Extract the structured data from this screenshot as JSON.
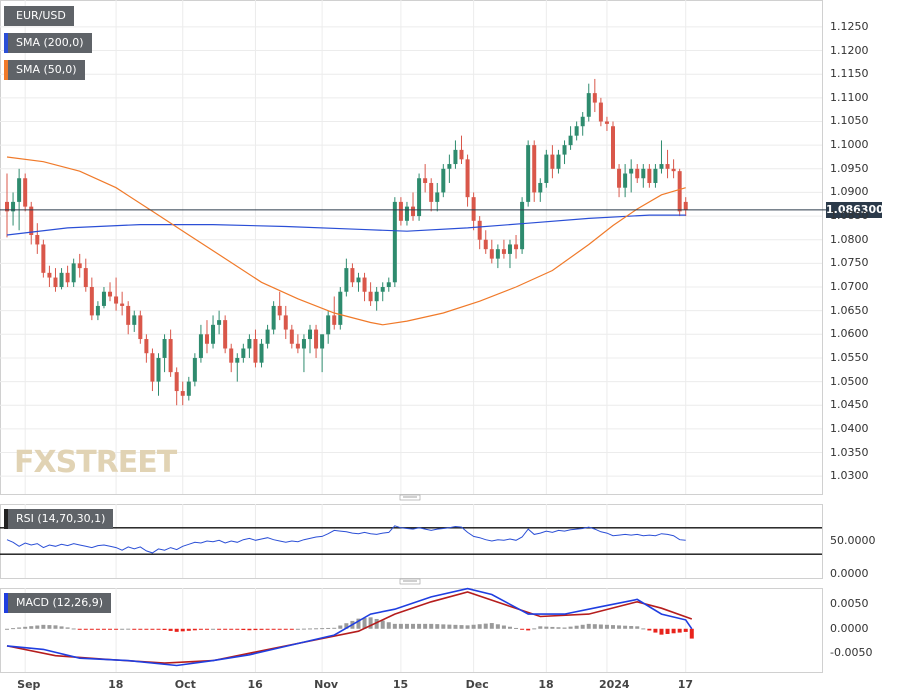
{
  "symbol": "EUR/USD",
  "indicators": {
    "sma200_label": "SMA (200,0)",
    "sma50_label": "SMA (50,0)",
    "rsi_label": "RSI (14,70,30,1)",
    "macd_label": "MACD (12,26,9)"
  },
  "watermark": "FXSTREET",
  "current_price": "1.086300",
  "colors": {
    "up": "#2e8b6e",
    "down": "#d9574a",
    "sma200": "#2b4fd6",
    "sma50": "#f07a2a",
    "rsi": "#2b4fd6",
    "macd_line": "#1f3ee0",
    "signal_line": "#b51d1d",
    "hist_pos": "#9a9a9a",
    "hist_neg": "#e8231c"
  },
  "chart_data": [
    {
      "type": "candlestick",
      "title": "EUR/USD",
      "y_ticks": [
        "1.1250",
        "1.1200",
        "1.1150",
        "1.1100",
        "1.1050",
        "1.1000",
        "1.0950",
        "1.0900",
        "1.0850",
        "1.0800",
        "1.0750",
        "1.0700",
        "1.0650",
        "1.0600",
        "1.0550",
        "1.0500",
        "1.0450",
        "1.0400",
        "1.0350",
        "1.0300"
      ],
      "ylim": [
        1.0275,
        1.129
      ],
      "x_ticks": [
        "Sep",
        "18",
        "Oct",
        "16",
        "Nov",
        "15",
        "Dec",
        "18",
        "2024",
        "17"
      ],
      "current_price": 1.0863,
      "ohlc": [
        [
          1.088,
          1.094,
          1.0805,
          1.086
        ],
        [
          1.086,
          1.09,
          1.083,
          1.088
        ],
        [
          1.088,
          1.095,
          1.082,
          1.093
        ],
        [
          1.093,
          1.094,
          1.086,
          1.087
        ],
        [
          1.087,
          1.088,
          1.079,
          1.081
        ],
        [
          1.081,
          1.0835,
          1.077,
          1.079
        ],
        [
          1.079,
          1.08,
          1.072,
          1.073
        ],
        [
          1.073,
          1.0745,
          1.07,
          1.072
        ],
        [
          1.072,
          1.074,
          1.069,
          1.07
        ],
        [
          1.07,
          1.074,
          1.0695,
          1.073
        ],
        [
          1.073,
          1.0745,
          1.07,
          1.071
        ],
        [
          1.071,
          1.076,
          1.07,
          1.075
        ],
        [
          1.075,
          1.077,
          1.072,
          1.074
        ],
        [
          1.074,
          1.076,
          1.069,
          1.07
        ],
        [
          1.07,
          1.072,
          1.063,
          1.064
        ],
        [
          1.064,
          1.067,
          1.063,
          1.066
        ],
        [
          1.066,
          1.07,
          1.0655,
          1.069
        ],
        [
          1.069,
          1.071,
          1.067,
          1.068
        ],
        [
          1.068,
          1.072,
          1.065,
          1.0665
        ],
        [
          1.0665,
          1.069,
          1.064,
          1.066
        ],
        [
          1.066,
          1.067,
          1.06,
          1.062
        ],
        [
          1.062,
          1.065,
          1.0605,
          1.064
        ],
        [
          1.064,
          1.065,
          1.058,
          1.059
        ],
        [
          1.059,
          1.06,
          1.054,
          1.056
        ],
        [
          1.056,
          1.057,
          1.048,
          1.05
        ],
        [
          1.05,
          1.056,
          1.047,
          1.055
        ],
        [
          1.055,
          1.06,
          1.052,
          1.059
        ],
        [
          1.059,
          1.061,
          1.051,
          1.052
        ],
        [
          1.052,
          1.053,
          1.045,
          1.048
        ],
        [
          1.048,
          1.05,
          1.045,
          1.047
        ],
        [
          1.047,
          1.051,
          1.046,
          1.05
        ],
        [
          1.05,
          1.056,
          1.049,
          1.055
        ],
        [
          1.055,
          1.062,
          1.054,
          1.06
        ],
        [
          1.06,
          1.063,
          1.056,
          1.058
        ],
        [
          1.058,
          1.064,
          1.057,
          1.062
        ],
        [
          1.062,
          1.065,
          1.06,
          1.063
        ],
        [
          1.063,
          1.064,
          1.056,
          1.057
        ],
        [
          1.057,
          1.058,
          1.052,
          1.054
        ],
        [
          1.054,
          1.056,
          1.05,
          1.055
        ],
        [
          1.055,
          1.058,
          1.054,
          1.057
        ],
        [
          1.057,
          1.06,
          1.055,
          1.059
        ],
        [
          1.059,
          1.061,
          1.053,
          1.054
        ],
        [
          1.054,
          1.059,
          1.053,
          1.058
        ],
        [
          1.058,
          1.062,
          1.057,
          1.061
        ],
        [
          1.061,
          1.067,
          1.06,
          1.066
        ],
        [
          1.066,
          1.069,
          1.063,
          1.064
        ],
        [
          1.064,
          1.066,
          1.059,
          1.061
        ],
        [
          1.061,
          1.062,
          1.057,
          1.058
        ],
        [
          1.058,
          1.06,
          1.056,
          1.057
        ],
        [
          1.057,
          1.06,
          1.052,
          1.059
        ],
        [
          1.059,
          1.062,
          1.056,
          1.061
        ],
        [
          1.061,
          1.062,
          1.055,
          1.057
        ],
        [
          1.057,
          1.06,
          1.052,
          1.06
        ],
        [
          1.06,
          1.065,
          1.058,
          1.064
        ],
        [
          1.064,
          1.068,
          1.061,
          1.062
        ],
        [
          1.062,
          1.07,
          1.061,
          1.069
        ],
        [
          1.069,
          1.076,
          1.068,
          1.074
        ],
        [
          1.074,
          1.075,
          1.07,
          1.071
        ],
        [
          1.071,
          1.073,
          1.069,
          1.072
        ],
        [
          1.072,
          1.073,
          1.067,
          1.069
        ],
        [
          1.069,
          1.071,
          1.066,
          1.067
        ],
        [
          1.067,
          1.07,
          1.065,
          1.069
        ],
        [
          1.069,
          1.071,
          1.067,
          1.07
        ],
        [
          1.07,
          1.072,
          1.069,
          1.071
        ],
        [
          1.071,
          1.089,
          1.07,
          1.088
        ],
        [
          1.088,
          1.089,
          1.083,
          1.084
        ],
        [
          1.084,
          1.088,
          1.083,
          1.087
        ],
        [
          1.087,
          1.09,
          1.084,
          1.085
        ],
        [
          1.085,
          1.094,
          1.084,
          1.093
        ],
        [
          1.093,
          1.096,
          1.09,
          1.092
        ],
        [
          1.092,
          1.093,
          1.086,
          1.088
        ],
        [
          1.088,
          1.092,
          1.086,
          1.09
        ],
        [
          1.09,
          1.096,
          1.089,
          1.095
        ],
        [
          1.095,
          1.098,
          1.092,
          1.096
        ],
        [
          1.096,
          1.101,
          1.095,
          1.099
        ],
        [
          1.099,
          1.102,
          1.096,
          1.097
        ],
        [
          1.097,
          1.098,
          1.087,
          1.089
        ],
        [
          1.089,
          1.09,
          1.082,
          1.084
        ],
        [
          1.084,
          1.085,
          1.078,
          1.08
        ],
        [
          1.08,
          1.082,
          1.077,
          1.078
        ],
        [
          1.078,
          1.08,
          1.075,
          1.076
        ],
        [
          1.076,
          1.079,
          1.074,
          1.078
        ],
        [
          1.078,
          1.08,
          1.076,
          1.077
        ],
        [
          1.077,
          1.08,
          1.074,
          1.079
        ],
        [
          1.079,
          1.081,
          1.076,
          1.078
        ],
        [
          1.078,
          1.089,
          1.077,
          1.088
        ],
        [
          1.088,
          1.101,
          1.087,
          1.1
        ],
        [
          1.1,
          1.101,
          1.088,
          1.09
        ],
        [
          1.09,
          1.093,
          1.088,
          1.092
        ],
        [
          1.092,
          1.099,
          1.091,
          1.098
        ],
        [
          1.098,
          1.1,
          1.093,
          1.095
        ],
        [
          1.095,
          1.099,
          1.094,
          1.098
        ],
        [
          1.098,
          1.101,
          1.096,
          1.1
        ],
        [
          1.1,
          1.104,
          1.099,
          1.102
        ],
        [
          1.102,
          1.105,
          1.101,
          1.104
        ],
        [
          1.104,
          1.107,
          1.102,
          1.106
        ],
        [
          1.106,
          1.113,
          1.105,
          1.111
        ],
        [
          1.111,
          1.114,
          1.107,
          1.109
        ],
        [
          1.109,
          1.11,
          1.104,
          1.105
        ],
        [
          1.105,
          1.106,
          1.103,
          1.1045
        ],
        [
          1.104,
          1.105,
          1.095,
          1.095
        ],
        [
          1.095,
          1.096,
          1.089,
          1.091
        ],
        [
          1.091,
          1.096,
          1.089,
          1.094
        ],
        [
          1.094,
          1.097,
          1.09,
          1.095
        ],
        [
          1.095,
          1.096,
          1.092,
          1.093
        ],
        [
          1.093,
          1.096,
          1.091,
          1.095
        ],
        [
          1.095,
          1.096,
          1.091,
          1.092
        ],
        [
          1.092,
          1.096,
          1.091,
          1.095
        ],
        [
          1.095,
          1.101,
          1.094,
          1.096
        ],
        [
          1.096,
          1.099,
          1.093,
          1.095
        ],
        [
          1.095,
          1.097,
          1.093,
          1.0945
        ],
        [
          1.0945,
          1.095,
          1.085,
          1.086
        ],
        [
          1.088,
          1.089,
          1.085,
          1.0863
        ]
      ],
      "sma200": [
        [
          0,
          1.081
        ],
        [
          10,
          1.0825
        ],
        [
          22,
          1.0832
        ],
        [
          34,
          1.0832
        ],
        [
          46,
          1.0828
        ],
        [
          58,
          1.0822
        ],
        [
          66,
          1.0818
        ],
        [
          76,
          1.0825
        ],
        [
          86,
          1.0835
        ],
        [
          96,
          1.0845
        ],
        [
          106,
          1.0852
        ],
        [
          112,
          1.0852
        ]
      ],
      "sma50": [
        [
          0,
          1.0975
        ],
        [
          6,
          1.0965
        ],
        [
          12,
          1.0945
        ],
        [
          18,
          1.091
        ],
        [
          24,
          1.086
        ],
        [
          30,
          1.081
        ],
        [
          36,
          1.076
        ],
        [
          42,
          1.071
        ],
        [
          48,
          1.0675
        ],
        [
          54,
          1.0645
        ],
        [
          60,
          1.0625
        ],
        [
          62,
          1.062
        ],
        [
          66,
          1.0628
        ],
        [
          72,
          1.0645
        ],
        [
          78,
          1.067
        ],
        [
          84,
          1.07
        ],
        [
          90,
          1.0735
        ],
        [
          96,
          1.079
        ],
        [
          100,
          1.083
        ],
        [
          104,
          1.0865
        ],
        [
          108,
          1.0895
        ],
        [
          112,
          1.091
        ]
      ]
    },
    {
      "type": "line",
      "title": "RSI (14,70,30,1)",
      "y_ticks": [
        "50.0000",
        "0.0000"
      ],
      "ylim": [
        0,
        100
      ],
      "levels": [
        70,
        30
      ],
      "values": [
        52,
        48,
        42,
        47,
        44,
        46,
        40,
        44,
        42,
        45,
        43,
        46,
        44,
        42,
        40,
        43,
        44,
        42,
        40,
        36,
        41,
        38,
        41,
        35,
        32,
        38,
        36,
        40,
        37,
        42,
        45,
        48,
        47,
        50,
        49,
        51,
        47,
        50,
        48,
        52,
        54,
        51,
        53,
        55,
        52,
        50,
        48,
        50,
        49,
        52,
        54,
        56,
        57,
        61,
        66,
        65,
        64,
        62,
        61,
        63,
        61,
        60,
        62,
        63,
        73,
        70,
        69,
        68,
        70,
        68,
        66,
        68,
        69,
        70,
        72,
        71,
        63,
        57,
        55,
        52,
        50,
        52,
        51,
        53,
        51,
        56,
        68,
        60,
        62,
        65,
        63,
        66,
        65,
        67,
        68,
        69,
        71,
        68,
        64,
        62,
        58,
        59,
        60,
        59,
        60,
        58,
        59,
        58,
        61,
        60,
        58,
        52,
        51
      ]
    },
    {
      "type": "bar+line",
      "title": "MACD (12,26,9)",
      "y_ticks": [
        "0.0050",
        "0.0000",
        "-0.0050"
      ],
      "ylim": [
        -0.008,
        0.0075
      ],
      "macd": [
        [
          0,
          -0.0035
        ],
        [
          6,
          -0.0042
        ],
        [
          12,
          -0.006
        ],
        [
          20,
          -0.0065
        ],
        [
          28,
          -0.0075
        ],
        [
          34,
          -0.0065
        ],
        [
          40,
          -0.0053
        ],
        [
          48,
          -0.003
        ],
        [
          54,
          -0.0013
        ],
        [
          60,
          0.003
        ],
        [
          64,
          0.004
        ],
        [
          70,
          0.0065
        ],
        [
          76,
          0.0082
        ],
        [
          80,
          0.007
        ],
        [
          86,
          0.003
        ],
        [
          92,
          0.003
        ],
        [
          98,
          0.0045
        ],
        [
          104,
          0.006
        ],
        [
          108,
          0.003
        ],
        [
          112,
          0.0018
        ],
        [
          113,
          0.0
        ]
      ],
      "signal": [
        [
          0,
          -0.0035
        ],
        [
          8,
          -0.0055
        ],
        [
          16,
          -0.0062
        ],
        [
          26,
          -0.007
        ],
        [
          34,
          -0.0065
        ],
        [
          42,
          -0.0045
        ],
        [
          50,
          -0.0025
        ],
        [
          58,
          -0.0005
        ],
        [
          64,
          0.003
        ],
        [
          70,
          0.0055
        ],
        [
          76,
          0.0075
        ],
        [
          82,
          0.005
        ],
        [
          88,
          0.0025
        ],
        [
          96,
          0.003
        ],
        [
          104,
          0.0055
        ],
        [
          108,
          0.0042
        ],
        [
          113,
          0.002
        ]
      ]
    }
  ]
}
